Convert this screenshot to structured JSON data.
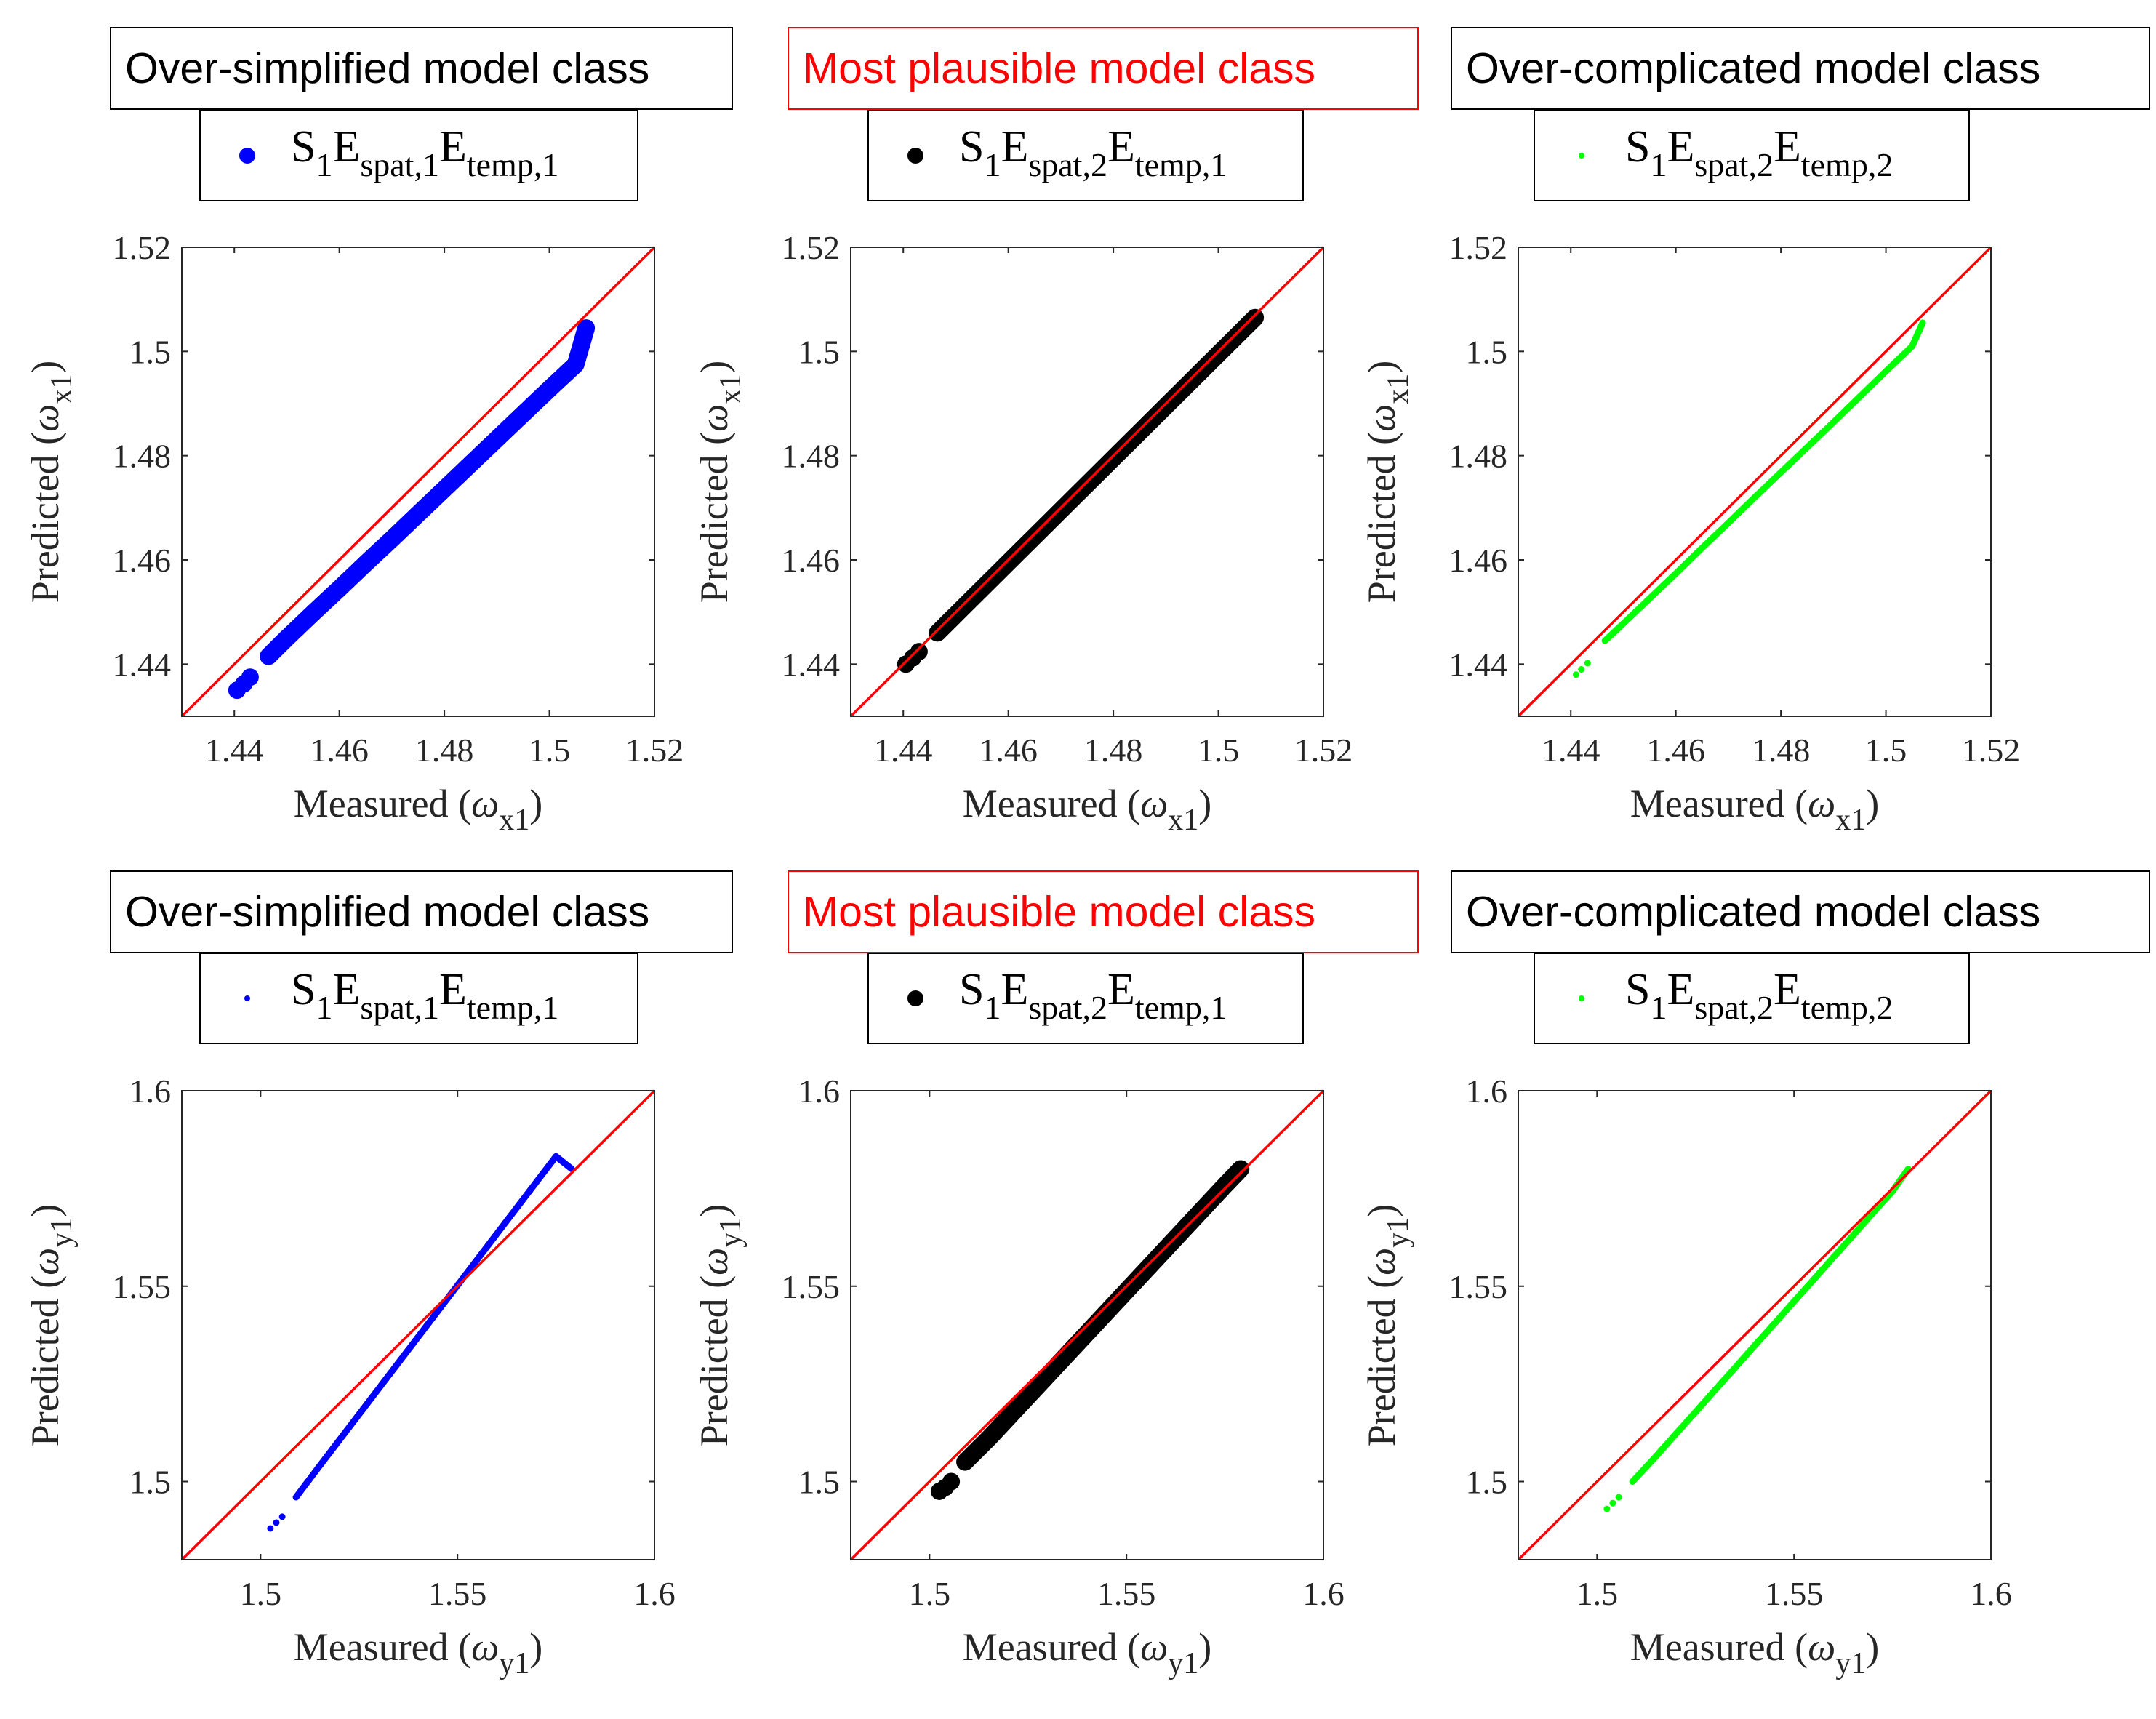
{
  "chart_data": [
    {
      "type": "scatter",
      "title": "Over-simplified model class",
      "title_color": "#000000",
      "legend": {
        "base": "S",
        "sub1": "1",
        "e1": "E",
        "sub2": "spat,1",
        "e2": "E",
        "sub3": "temp,1",
        "marker_size": "large"
      },
      "series_color": "#0000ff",
      "xlabel": {
        "prefix": "Measured (",
        "symbol": "ω",
        "sub": "x1",
        "suffix": ")"
      },
      "ylabel": {
        "prefix": "Predicted (",
        "symbol": "ω",
        "sub": "x1",
        "suffix": ")"
      },
      "xlim": [
        1.43,
        1.52
      ],
      "ylim": [
        1.43,
        1.52
      ],
      "xticks": [
        1.44,
        1.46,
        1.48,
        1.5,
        1.52
      ],
      "xtick_labels": [
        "1.44",
        "1.46",
        "1.48",
        "1.5",
        "1.52"
      ],
      "yticks": [
        1.44,
        1.46,
        1.48,
        1.5,
        1.52
      ],
      "ytick_labels": [
        "1.44",
        "1.46",
        "1.48",
        "1.5",
        "1.52"
      ],
      "reference_line": {
        "from": [
          1.43,
          1.43
        ],
        "to": [
          1.52,
          1.52
        ],
        "color": "#ff0000"
      },
      "x": [
        1.4405,
        1.4418,
        1.443,
        1.4465,
        1.45,
        1.455,
        1.46,
        1.465,
        1.47,
        1.475,
        1.48,
        1.485,
        1.49,
        1.495,
        1.5,
        1.505,
        1.507
      ],
      "y": [
        1.435,
        1.4362,
        1.4375,
        1.4415,
        1.445,
        1.4498,
        1.4545,
        1.4593,
        1.464,
        1.4688,
        1.4736,
        1.4784,
        1.4832,
        1.488,
        1.4928,
        1.4975,
        1.5045
      ]
    },
    {
      "type": "scatter",
      "title": "Most plausible model class",
      "title_color": "#ff0000",
      "legend": {
        "base": "S",
        "sub1": "1",
        "e1": "E",
        "sub2": "spat,2",
        "e2": "E",
        "sub3": "temp,1",
        "marker_size": "large"
      },
      "series_color": "#000000",
      "xlabel": {
        "prefix": "Measured (",
        "symbol": "ω",
        "sub": "x1",
        "suffix": ")"
      },
      "ylabel": {
        "prefix": "Predicted (",
        "symbol": "ω",
        "sub": "x1",
        "suffix": ")"
      },
      "xlim": [
        1.43,
        1.52
      ],
      "ylim": [
        1.43,
        1.52
      ],
      "xticks": [
        1.44,
        1.46,
        1.48,
        1.5,
        1.52
      ],
      "xtick_labels": [
        "1.44",
        "1.46",
        "1.48",
        "1.5",
        "1.52"
      ],
      "yticks": [
        1.44,
        1.46,
        1.48,
        1.5,
        1.52
      ],
      "ytick_labels": [
        "1.44",
        "1.46",
        "1.48",
        "1.5",
        "1.52"
      ],
      "reference_line": {
        "from": [
          1.43,
          1.43
        ],
        "to": [
          1.52,
          1.52
        ],
        "color": "#ff0000"
      },
      "x": [
        1.4405,
        1.4418,
        1.443,
        1.4465,
        1.45,
        1.455,
        1.46,
        1.465,
        1.47,
        1.475,
        1.48,
        1.485,
        1.49,
        1.495,
        1.5,
        1.505,
        1.507
      ],
      "y": [
        1.44,
        1.4412,
        1.4424,
        1.446,
        1.4495,
        1.4545,
        1.4595,
        1.4645,
        1.4695,
        1.4745,
        1.4795,
        1.4845,
        1.4895,
        1.4945,
        1.4995,
        1.5045,
        1.5065
      ]
    },
    {
      "type": "scatter",
      "title": "Over-complicated model class",
      "title_color": "#000000",
      "legend": {
        "base": "S",
        "sub1": "1",
        "e1": "E",
        "sub2": "spat,2",
        "e2": "E",
        "sub3": "temp,2",
        "marker_size": "small"
      },
      "series_color": "#00ff00",
      "xlabel": {
        "prefix": "Measured (",
        "symbol": "ω",
        "sub": "x1",
        "suffix": ")"
      },
      "ylabel": {
        "prefix": "Predicted (",
        "symbol": "ω",
        "sub": "x1",
        "suffix": ")"
      },
      "xlim": [
        1.43,
        1.52
      ],
      "ylim": [
        1.43,
        1.52
      ],
      "xticks": [
        1.44,
        1.46,
        1.48,
        1.5,
        1.52
      ],
      "xtick_labels": [
        "1.44",
        "1.46",
        "1.48",
        "1.5",
        "1.52"
      ],
      "yticks": [
        1.44,
        1.46,
        1.48,
        1.5,
        1.52
      ],
      "ytick_labels": [
        "1.44",
        "1.46",
        "1.48",
        "1.5",
        "1.52"
      ],
      "reference_line": {
        "from": [
          1.43,
          1.43
        ],
        "to": [
          1.52,
          1.52
        ],
        "color": "#ff0000"
      },
      "x": [
        1.441,
        1.442,
        1.4432,
        1.4465,
        1.45,
        1.455,
        1.46,
        1.465,
        1.47,
        1.475,
        1.48,
        1.485,
        1.49,
        1.495,
        1.5,
        1.505,
        1.507
      ],
      "y": [
        1.438,
        1.439,
        1.4402,
        1.4445,
        1.4478,
        1.4526,
        1.4574,
        1.4623,
        1.4671,
        1.472,
        1.4768,
        1.4816,
        1.4864,
        1.4913,
        1.4962,
        1.501,
        1.5055
      ]
    },
    {
      "type": "scatter",
      "title": "Over-simplified model class",
      "title_color": "#000000",
      "legend": {
        "base": "S",
        "sub1": "1",
        "e1": "E",
        "sub2": "spat,1",
        "e2": "E",
        "sub3": "temp,1",
        "marker_size": "small"
      },
      "series_color": "#0000ff",
      "xlabel": {
        "prefix": "Measured (",
        "symbol": "ω",
        "sub": "y1",
        "suffix": ")"
      },
      "ylabel": {
        "prefix": "Predicted (",
        "symbol": "ω",
        "sub": "y1",
        "suffix": ")"
      },
      "xlim": [
        1.48,
        1.6
      ],
      "ylim": [
        1.48,
        1.6
      ],
      "xticks": [
        1.5,
        1.55,
        1.6
      ],
      "xtick_labels": [
        "1.5",
        "1.55",
        "1.6"
      ],
      "yticks": [
        1.5,
        1.55,
        1.6
      ],
      "ytick_labels": [
        "1.5",
        "1.55",
        "1.6"
      ],
      "reference_line": {
        "from": [
          1.48,
          1.48
        ],
        "to": [
          1.6,
          1.6
        ],
        "color": "#ff0000"
      },
      "x": [
        1.5025,
        1.504,
        1.5055,
        1.509,
        1.515,
        1.52,
        1.525,
        1.53,
        1.535,
        1.54,
        1.545,
        1.55,
        1.555,
        1.56,
        1.565,
        1.57,
        1.575,
        1.579
      ],
      "y": [
        1.488,
        1.4895,
        1.491,
        1.496,
        1.504,
        1.5106,
        1.5172,
        1.5238,
        1.5304,
        1.537,
        1.5436,
        1.5502,
        1.5568,
        1.5634,
        1.57,
        1.5766,
        1.5832,
        1.58
      ]
    },
    {
      "type": "scatter",
      "title": "Most plausible model class",
      "title_color": "#ff0000",
      "legend": {
        "base": "S",
        "sub1": "1",
        "e1": "E",
        "sub2": "spat,2",
        "e2": "E",
        "sub3": "temp,1",
        "marker_size": "large"
      },
      "series_color": "#000000",
      "xlabel": {
        "prefix": "Measured (",
        "symbol": "ω",
        "sub": "y1",
        "suffix": ")"
      },
      "ylabel": {
        "prefix": "Predicted (",
        "symbol": "ω",
        "sub": "y1",
        "suffix": ")"
      },
      "xlim": [
        1.48,
        1.6
      ],
      "ylim": [
        1.48,
        1.6
      ],
      "xticks": [
        1.5,
        1.55,
        1.6
      ],
      "xtick_labels": [
        "1.5",
        "1.55",
        "1.6"
      ],
      "yticks": [
        1.5,
        1.55,
        1.6
      ],
      "ytick_labels": [
        "1.5",
        "1.55",
        "1.6"
      ],
      "reference_line": {
        "from": [
          1.48,
          1.48
        ],
        "to": [
          1.6,
          1.6
        ],
        "color": "#ff0000"
      },
      "x": [
        1.5025,
        1.504,
        1.5055,
        1.509,
        1.515,
        1.52,
        1.525,
        1.53,
        1.535,
        1.54,
        1.545,
        1.55,
        1.555,
        1.56,
        1.565,
        1.57,
        1.575,
        1.579
      ],
      "y": [
        1.4975,
        1.4985,
        1.5,
        1.505,
        1.511,
        1.5164,
        1.5218,
        1.5272,
        1.5326,
        1.538,
        1.5434,
        1.5488,
        1.5542,
        1.5596,
        1.565,
        1.5704,
        1.5758,
        1.58
      ]
    },
    {
      "type": "scatter",
      "title": "Over-complicated model class",
      "title_color": "#000000",
      "legend": {
        "base": "S",
        "sub1": "1",
        "e1": "E",
        "sub2": "spat,2",
        "e2": "E",
        "sub3": "temp,2",
        "marker_size": "small"
      },
      "series_color": "#00ff00",
      "xlabel": {
        "prefix": "Measured (",
        "symbol": "ω",
        "sub": "y1",
        "suffix": ")"
      },
      "ylabel": {
        "prefix": "Predicted (",
        "symbol": "ω",
        "sub": "y1",
        "suffix": ")"
      },
      "xlim": [
        1.48,
        1.6
      ],
      "ylim": [
        1.48,
        1.6
      ],
      "xticks": [
        1.5,
        1.55,
        1.6
      ],
      "xtick_labels": [
        "1.5",
        "1.55",
        "1.6"
      ],
      "yticks": [
        1.5,
        1.55,
        1.6
      ],
      "ytick_labels": [
        "1.5",
        "1.55",
        "1.6"
      ],
      "reference_line": {
        "from": [
          1.48,
          1.48
        ],
        "to": [
          1.6,
          1.6
        ],
        "color": "#ff0000"
      },
      "x": [
        1.5025,
        1.504,
        1.5055,
        1.509,
        1.515,
        1.52,
        1.525,
        1.53,
        1.535,
        1.54,
        1.545,
        1.55,
        1.555,
        1.56,
        1.565,
        1.57,
        1.575,
        1.579
      ],
      "y": [
        1.493,
        1.4945,
        1.496,
        1.5,
        1.5065,
        1.5122,
        1.5178,
        1.5235,
        1.5291,
        1.5348,
        1.5404,
        1.5461,
        1.5517,
        1.5574,
        1.563,
        1.5687,
        1.5743,
        1.58
      ]
    }
  ]
}
